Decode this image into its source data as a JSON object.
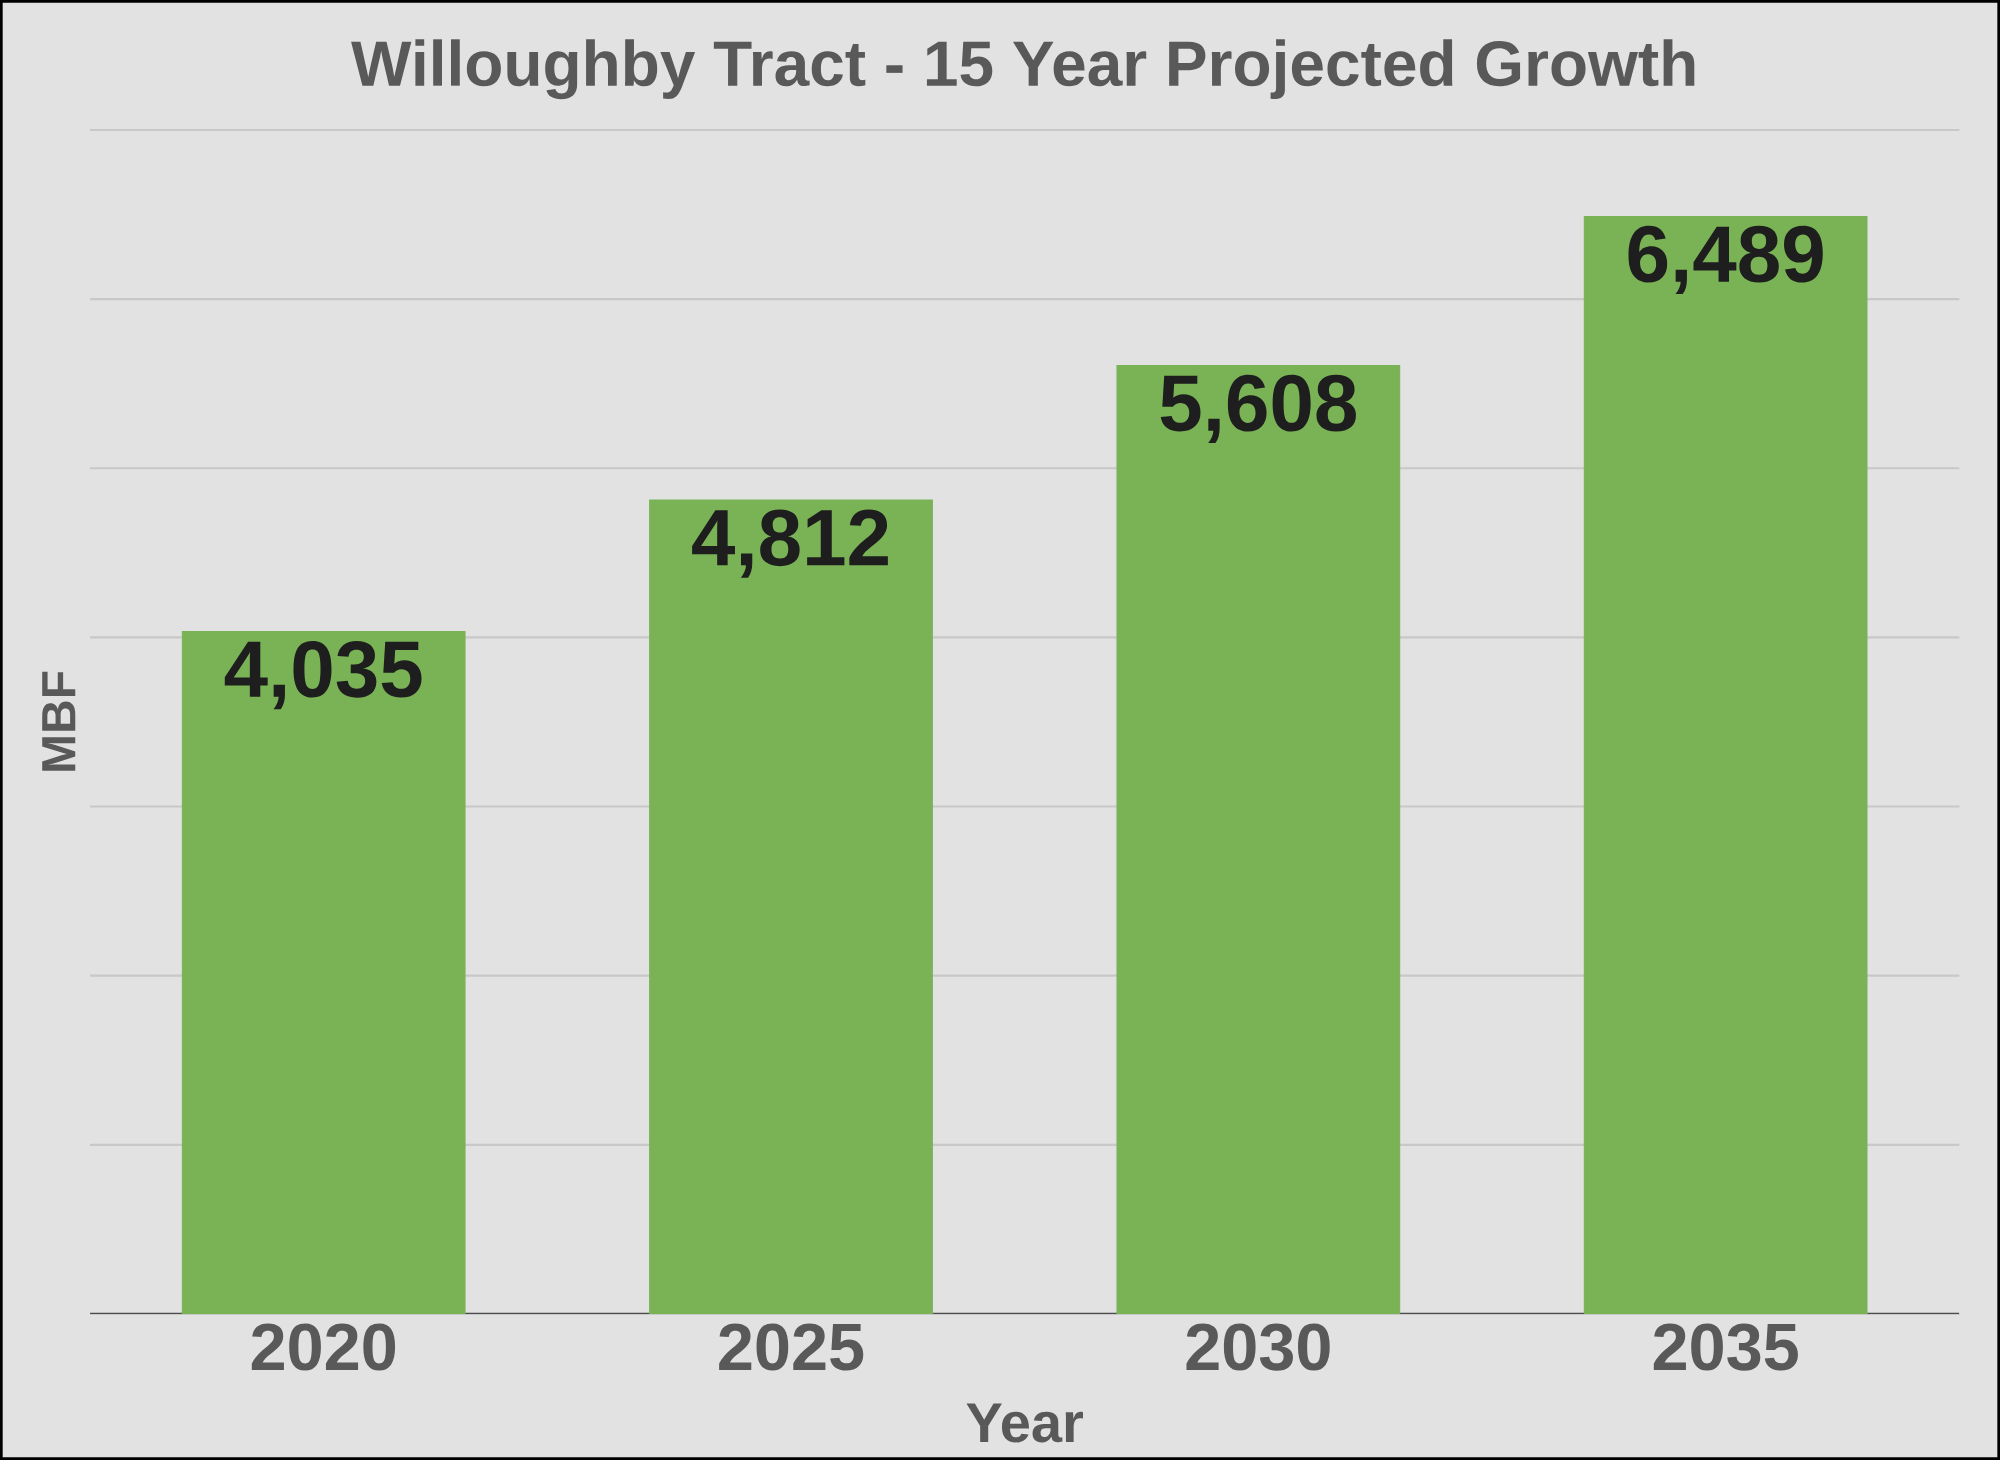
{
  "chart_data": {
    "type": "bar",
    "title": "Willoughby Tract - 15 Year Projected Growth",
    "xlabel": "Year",
    "ylabel": "MBF",
    "categories": [
      "2020",
      "2025",
      "2030",
      "2035"
    ],
    "values": [
      4035,
      4812,
      5608,
      6489
    ],
    "value_labels": [
      "4,035",
      "4,812",
      "5,608",
      "6,489"
    ],
    "color": "#7ab356",
    "ylim": [
      0,
      7000
    ],
    "yticks": [
      {
        "value": 0,
        "label": null
      },
      {
        "value": 1000,
        "label": null
      },
      {
        "value": 2000,
        "label": null
      },
      {
        "value": 3000,
        "label": null
      },
      {
        "value": 4000,
        "label": null
      },
      {
        "value": 5000,
        "label": null
      },
      {
        "value": 6000,
        "label": null
      },
      {
        "value": 7000,
        "label": null
      }
    ],
    "tick_labels": "x",
    "grid": "y"
  }
}
